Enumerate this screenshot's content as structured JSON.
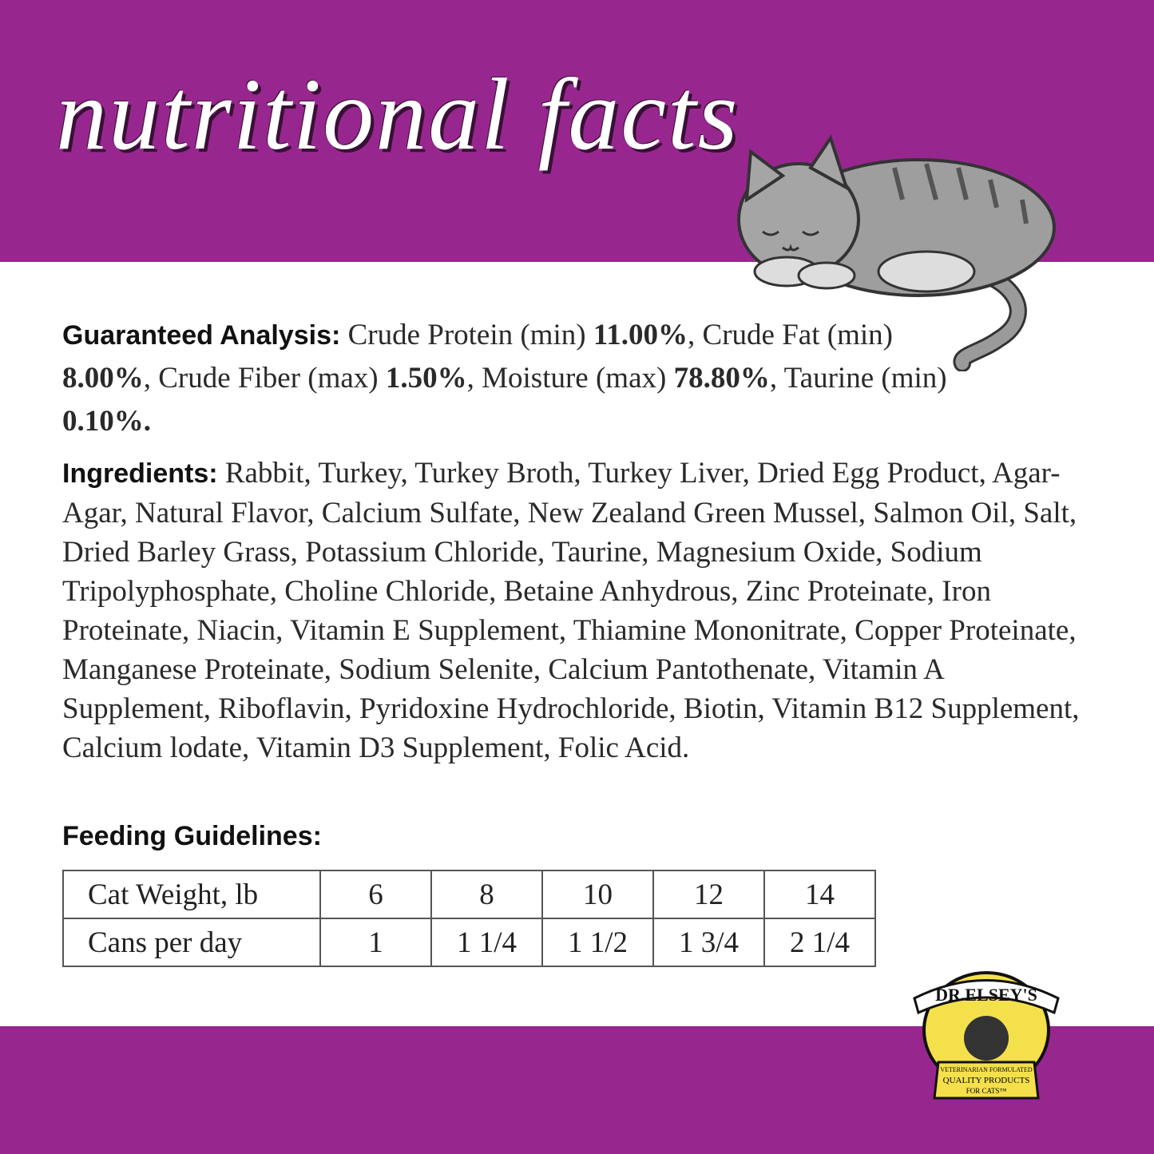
{
  "header": {
    "title": "nutritional facts"
  },
  "guaranteed_analysis": {
    "label": "Guaranteed Analysis:",
    "parts": [
      " Crude Protein (min) ",
      "11.00%",
      ", Crude Fat (min) ",
      "8.00%",
      ", Crude Fiber (max) ",
      "1.50%",
      ", Moisture (max) ",
      "78.80%",
      ", Taurine (min) ",
      "0.10%."
    ]
  },
  "ingredients": {
    "label": "Ingredients:",
    "text": " Rabbit, Turkey, Turkey Broth, Turkey Liver, Dried Egg Product, Agar-Agar, Natural Flavor, Calcium Sulfate, New Zealand Green Mussel, Salmon Oil, Salt, Dried Barley Grass, Potassium Chloride, Taurine, Magnesium Oxide, Sodium Tripolyphosphate, Choline Chloride, Betaine Anhydrous, Zinc Proteinate, Iron Proteinate, Niacin, Vitamin E Supplement, Thiamine Mononitrate, Copper Proteinate, Manganese Proteinate, Sodium Selenite, Calcium Pantothenate, Vitamin A Supplement, Riboflavin, Pyridoxine Hydrochloride, Biotin, Vitamin B12 Supplement, Calcium lodate, Vitamin D3 Supplement, Folic Acid."
  },
  "feeding": {
    "title": "Feeding Guidelines:",
    "table": {
      "rows": [
        [
          "Cat Weight, lb",
          6,
          8,
          10,
          12,
          14
        ],
        [
          "Cans per day",
          1,
          "1 1/4",
          "1 1/2",
          "1 3/4",
          "2 1/4"
        ]
      ]
    }
  },
  "logo": {
    "brand": "DR.ELSEY'S",
    "tagline": [
      "VETERINARIAN FORMULATED",
      "QUALITY PRODUCTS",
      "FOR CATS™"
    ]
  }
}
